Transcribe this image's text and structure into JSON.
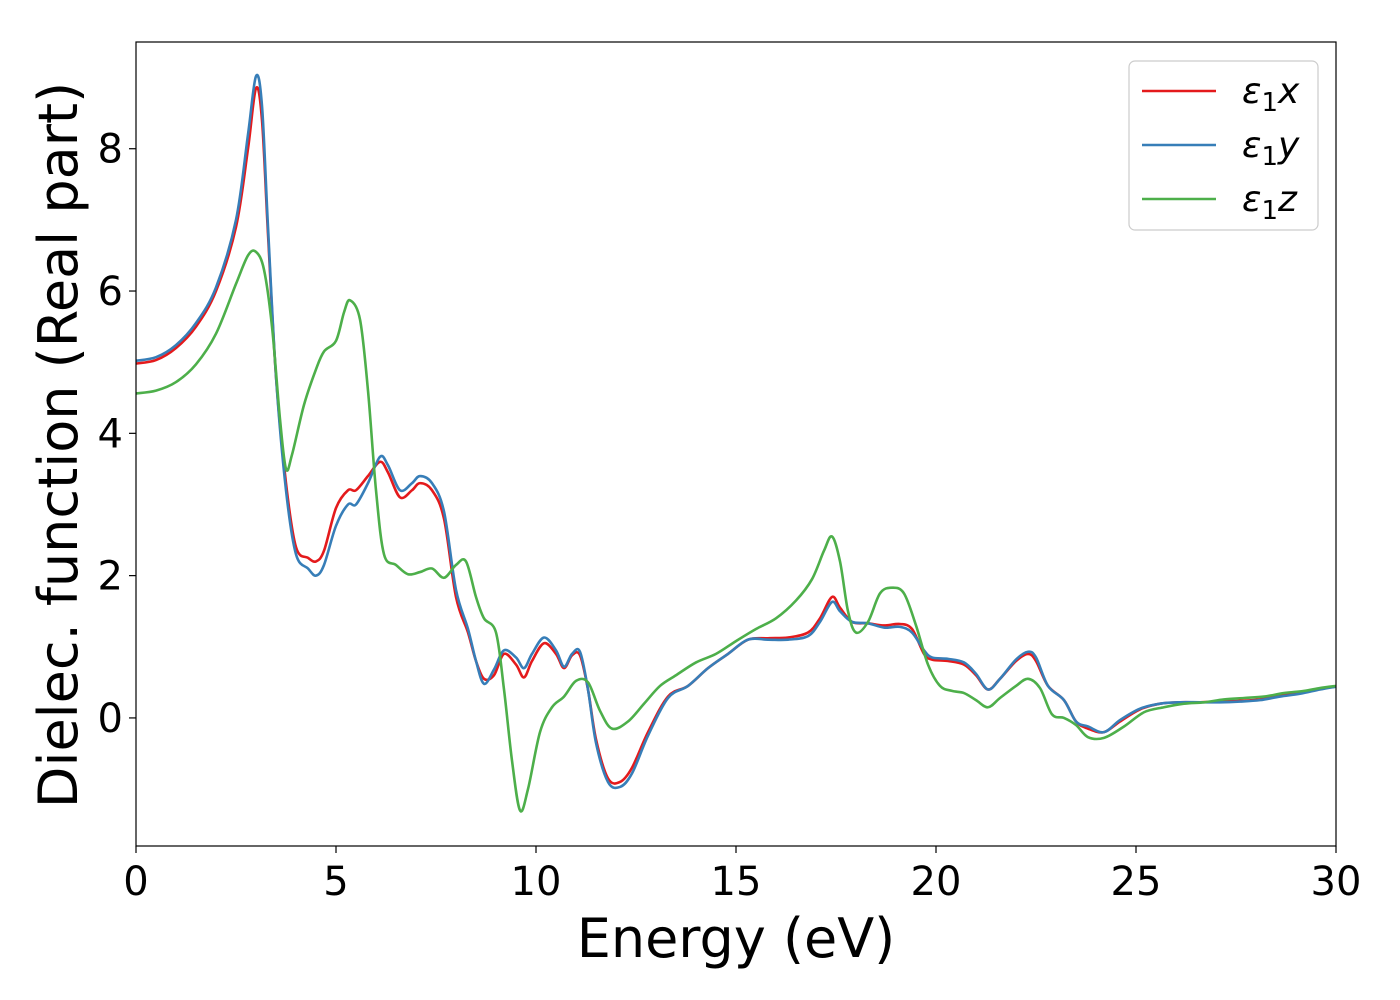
{
  "chart_data": {
    "type": "line",
    "xlabel": "Energy (eV)",
    "ylabel": "Dielec. function (Real part)",
    "xlim": [
      0,
      30
    ],
    "ylim": [
      -1.8,
      9.5
    ],
    "grid": false,
    "legend_placement": "top-right",
    "x_ticks": [
      0,
      5,
      10,
      15,
      20,
      25,
      30
    ],
    "x_tick_labels": [
      "0",
      "5",
      "10",
      "15",
      "20",
      "25",
      "30"
    ],
    "y_ticks": [
      0,
      2,
      4,
      6,
      8
    ],
    "y_tick_labels": [
      "0",
      "2",
      "4",
      "6",
      "8"
    ],
    "series": [
      {
        "name": "ε₁x",
        "legend_main": "ε",
        "legend_sub": "1",
        "legend_var": "x",
        "color": "#e41a1c",
        "points": [
          [
            0,
            4.98
          ],
          [
            0.5,
            5.03
          ],
          [
            1.0,
            5.2
          ],
          [
            1.5,
            5.5
          ],
          [
            2.0,
            6.0
          ],
          [
            2.5,
            6.9
          ],
          [
            2.8,
            8.0
          ],
          [
            3.0,
            8.85
          ],
          [
            3.15,
            8.4
          ],
          [
            3.3,
            6.8
          ],
          [
            3.5,
            4.8
          ],
          [
            3.75,
            3.3
          ],
          [
            4.0,
            2.4
          ],
          [
            4.3,
            2.25
          ],
          [
            4.5,
            2.2
          ],
          [
            4.7,
            2.35
          ],
          [
            5.0,
            2.95
          ],
          [
            5.3,
            3.2
          ],
          [
            5.5,
            3.2
          ],
          [
            5.8,
            3.4
          ],
          [
            6.1,
            3.6
          ],
          [
            6.3,
            3.45
          ],
          [
            6.6,
            3.1
          ],
          [
            6.9,
            3.2
          ],
          [
            7.1,
            3.3
          ],
          [
            7.4,
            3.2
          ],
          [
            7.7,
            2.8
          ],
          [
            8.0,
            1.7
          ],
          [
            8.3,
            1.2
          ],
          [
            8.5,
            0.8
          ],
          [
            8.7,
            0.55
          ],
          [
            8.95,
            0.6
          ],
          [
            9.2,
            0.9
          ],
          [
            9.5,
            0.75
          ],
          [
            9.7,
            0.57
          ],
          [
            9.9,
            0.8
          ],
          [
            10.2,
            1.05
          ],
          [
            10.5,
            0.9
          ],
          [
            10.7,
            0.7
          ],
          [
            10.9,
            0.88
          ],
          [
            11.1,
            0.88
          ],
          [
            11.3,
            0.4
          ],
          [
            11.5,
            -0.3
          ],
          [
            11.8,
            -0.85
          ],
          [
            12.1,
            -0.9
          ],
          [
            12.4,
            -0.7
          ],
          [
            12.8,
            -0.2
          ],
          [
            13.3,
            0.3
          ],
          [
            13.8,
            0.45
          ],
          [
            14.3,
            0.7
          ],
          [
            14.8,
            0.9
          ],
          [
            15.3,
            1.1
          ],
          [
            15.8,
            1.12
          ],
          [
            16.3,
            1.13
          ],
          [
            16.8,
            1.2
          ],
          [
            17.1,
            1.4
          ],
          [
            17.4,
            1.7
          ],
          [
            17.6,
            1.55
          ],
          [
            17.9,
            1.35
          ],
          [
            18.3,
            1.33
          ],
          [
            18.7,
            1.3
          ],
          [
            19.1,
            1.32
          ],
          [
            19.4,
            1.25
          ],
          [
            19.7,
            0.9
          ],
          [
            19.9,
            0.82
          ],
          [
            20.3,
            0.8
          ],
          [
            20.7,
            0.75
          ],
          [
            21.0,
            0.6
          ],
          [
            21.3,
            0.4
          ],
          [
            21.6,
            0.55
          ],
          [
            22.0,
            0.8
          ],
          [
            22.3,
            0.9
          ],
          [
            22.5,
            0.8
          ],
          [
            22.8,
            0.45
          ],
          [
            23.2,
            0.25
          ],
          [
            23.5,
            -0.05
          ],
          [
            23.8,
            -0.15
          ],
          [
            24.2,
            -0.2
          ],
          [
            24.6,
            -0.05
          ],
          [
            25.1,
            0.12
          ],
          [
            25.6,
            0.2
          ],
          [
            26.1,
            0.22
          ],
          [
            26.6,
            0.22
          ],
          [
            27.1,
            0.23
          ],
          [
            27.6,
            0.24
          ],
          [
            28.1,
            0.26
          ],
          [
            28.6,
            0.32
          ],
          [
            29.1,
            0.36
          ],
          [
            29.6,
            0.41
          ],
          [
            30.0,
            0.44
          ]
        ]
      },
      {
        "name": "ε₁y",
        "legend_main": "ε",
        "legend_sub": "1",
        "legend_var": "y",
        "color": "#377eb8",
        "points": [
          [
            0,
            5.02
          ],
          [
            0.5,
            5.07
          ],
          [
            1.0,
            5.24
          ],
          [
            1.5,
            5.55
          ],
          [
            2.0,
            6.05
          ],
          [
            2.5,
            7.0
          ],
          [
            2.8,
            8.2
          ],
          [
            3.0,
            9.02
          ],
          [
            3.15,
            8.6
          ],
          [
            3.3,
            6.9
          ],
          [
            3.5,
            4.8
          ],
          [
            3.75,
            3.2
          ],
          [
            4.0,
            2.3
          ],
          [
            4.3,
            2.1
          ],
          [
            4.5,
            2.0
          ],
          [
            4.7,
            2.15
          ],
          [
            5.0,
            2.7
          ],
          [
            5.3,
            3.0
          ],
          [
            5.5,
            3.0
          ],
          [
            5.8,
            3.3
          ],
          [
            6.1,
            3.67
          ],
          [
            6.3,
            3.55
          ],
          [
            6.6,
            3.2
          ],
          [
            6.9,
            3.3
          ],
          [
            7.1,
            3.4
          ],
          [
            7.4,
            3.3
          ],
          [
            7.7,
            2.9
          ],
          [
            8.0,
            1.8
          ],
          [
            8.3,
            1.25
          ],
          [
            8.5,
            0.8
          ],
          [
            8.7,
            0.48
          ],
          [
            8.95,
            0.68
          ],
          [
            9.2,
            0.95
          ],
          [
            9.5,
            0.85
          ],
          [
            9.7,
            0.7
          ],
          [
            9.9,
            0.9
          ],
          [
            10.2,
            1.13
          ],
          [
            10.5,
            0.95
          ],
          [
            10.7,
            0.72
          ],
          [
            10.9,
            0.9
          ],
          [
            11.1,
            0.93
          ],
          [
            11.3,
            0.4
          ],
          [
            11.5,
            -0.35
          ],
          [
            11.8,
            -0.9
          ],
          [
            12.1,
            -0.97
          ],
          [
            12.4,
            -0.78
          ],
          [
            12.8,
            -0.25
          ],
          [
            13.3,
            0.28
          ],
          [
            13.8,
            0.45
          ],
          [
            14.3,
            0.7
          ],
          [
            14.8,
            0.9
          ],
          [
            15.3,
            1.1
          ],
          [
            15.8,
            1.1
          ],
          [
            16.3,
            1.1
          ],
          [
            16.8,
            1.15
          ],
          [
            17.1,
            1.35
          ],
          [
            17.4,
            1.63
          ],
          [
            17.6,
            1.5
          ],
          [
            17.9,
            1.35
          ],
          [
            18.3,
            1.33
          ],
          [
            18.7,
            1.27
          ],
          [
            19.1,
            1.28
          ],
          [
            19.4,
            1.2
          ],
          [
            19.7,
            0.95
          ],
          [
            19.9,
            0.85
          ],
          [
            20.3,
            0.83
          ],
          [
            20.7,
            0.78
          ],
          [
            21.0,
            0.62
          ],
          [
            21.3,
            0.4
          ],
          [
            21.6,
            0.55
          ],
          [
            22.0,
            0.82
          ],
          [
            22.3,
            0.93
          ],
          [
            22.5,
            0.85
          ],
          [
            22.8,
            0.45
          ],
          [
            23.2,
            0.25
          ],
          [
            23.5,
            -0.05
          ],
          [
            23.8,
            -0.12
          ],
          [
            24.2,
            -0.2
          ],
          [
            24.6,
            -0.03
          ],
          [
            25.1,
            0.13
          ],
          [
            25.6,
            0.2
          ],
          [
            26.1,
            0.22
          ],
          [
            26.6,
            0.22
          ],
          [
            27.1,
            0.22
          ],
          [
            27.6,
            0.23
          ],
          [
            28.1,
            0.25
          ],
          [
            28.6,
            0.3
          ],
          [
            29.1,
            0.34
          ],
          [
            29.6,
            0.4
          ],
          [
            30.0,
            0.44
          ]
        ]
      },
      {
        "name": "ε₁z",
        "legend_main": "ε",
        "legend_sub": "1",
        "legend_var": "z",
        "color": "#4daf4a",
        "points": [
          [
            0,
            4.56
          ],
          [
            0.5,
            4.6
          ],
          [
            1.0,
            4.72
          ],
          [
            1.5,
            4.97
          ],
          [
            2.0,
            5.4
          ],
          [
            2.5,
            6.1
          ],
          [
            2.8,
            6.5
          ],
          [
            3.0,
            6.55
          ],
          [
            3.2,
            6.3
          ],
          [
            3.4,
            5.5
          ],
          [
            3.6,
            4.2
          ],
          [
            3.75,
            3.5
          ],
          [
            3.9,
            3.7
          ],
          [
            4.2,
            4.4
          ],
          [
            4.5,
            4.9
          ],
          [
            4.7,
            5.15
          ],
          [
            5.0,
            5.3
          ],
          [
            5.2,
            5.7
          ],
          [
            5.35,
            5.87
          ],
          [
            5.6,
            5.6
          ],
          [
            5.8,
            4.6
          ],
          [
            6.0,
            3.2
          ],
          [
            6.2,
            2.3
          ],
          [
            6.5,
            2.15
          ],
          [
            6.8,
            2.02
          ],
          [
            7.1,
            2.05
          ],
          [
            7.4,
            2.1
          ],
          [
            7.7,
            1.97
          ],
          [
            8.0,
            2.15
          ],
          [
            8.25,
            2.2
          ],
          [
            8.5,
            1.7
          ],
          [
            8.7,
            1.4
          ],
          [
            9.0,
            1.2
          ],
          [
            9.2,
            0.4
          ],
          [
            9.4,
            -0.6
          ],
          [
            9.6,
            -1.3
          ],
          [
            9.8,
            -1.0
          ],
          [
            10.1,
            -0.2
          ],
          [
            10.4,
            0.15
          ],
          [
            10.7,
            0.3
          ],
          [
            11.0,
            0.52
          ],
          [
            11.3,
            0.5
          ],
          [
            11.6,
            0.1
          ],
          [
            11.9,
            -0.15
          ],
          [
            12.3,
            -0.05
          ],
          [
            12.7,
            0.2
          ],
          [
            13.1,
            0.45
          ],
          [
            13.5,
            0.6
          ],
          [
            14.0,
            0.78
          ],
          [
            14.5,
            0.9
          ],
          [
            15.0,
            1.08
          ],
          [
            15.5,
            1.25
          ],
          [
            16.0,
            1.4
          ],
          [
            16.5,
            1.65
          ],
          [
            16.9,
            1.95
          ],
          [
            17.2,
            2.35
          ],
          [
            17.4,
            2.55
          ],
          [
            17.6,
            2.2
          ],
          [
            17.8,
            1.5
          ],
          [
            18.0,
            1.2
          ],
          [
            18.3,
            1.35
          ],
          [
            18.6,
            1.75
          ],
          [
            18.9,
            1.83
          ],
          [
            19.2,
            1.75
          ],
          [
            19.5,
            1.3
          ],
          [
            19.8,
            0.75
          ],
          [
            20.1,
            0.45
          ],
          [
            20.4,
            0.38
          ],
          [
            20.7,
            0.35
          ],
          [
            21.0,
            0.25
          ],
          [
            21.3,
            0.15
          ],
          [
            21.6,
            0.28
          ],
          [
            22.0,
            0.45
          ],
          [
            22.3,
            0.55
          ],
          [
            22.6,
            0.42
          ],
          [
            22.9,
            0.05
          ],
          [
            23.2,
            0.0
          ],
          [
            23.5,
            -0.1
          ],
          [
            23.8,
            -0.27
          ],
          [
            24.2,
            -0.28
          ],
          [
            24.7,
            -0.12
          ],
          [
            25.2,
            0.08
          ],
          [
            25.7,
            0.15
          ],
          [
            26.2,
            0.2
          ],
          [
            26.7,
            0.22
          ],
          [
            27.2,
            0.26
          ],
          [
            27.7,
            0.28
          ],
          [
            28.2,
            0.3
          ],
          [
            28.7,
            0.35
          ],
          [
            29.2,
            0.38
          ],
          [
            29.6,
            0.42
          ],
          [
            30.0,
            0.45
          ]
        ]
      }
    ]
  }
}
